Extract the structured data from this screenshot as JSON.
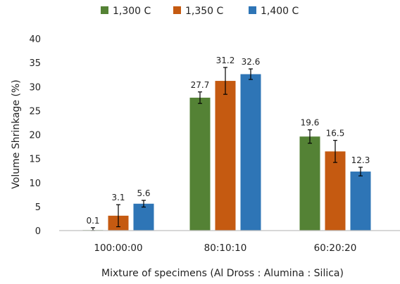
{
  "chart_data": {
    "type": "bar",
    "title": "",
    "xlabel": "Mixture of specimens (Al Dross : Alumina : Silica)",
    "ylabel": "Volume Shrinkage (%)",
    "ylim": [
      0,
      40
    ],
    "yticks": [
      0,
      5,
      10,
      15,
      20,
      25,
      30,
      35,
      40
    ],
    "grid": false,
    "legend_position": "top",
    "categories": [
      "100:00:00",
      "80:10:10",
      "60:20:20"
    ],
    "series": [
      {
        "name": "1,300 C",
        "color": "#548235",
        "values": [
          0.1,
          27.7,
          19.6
        ],
        "errors": [
          0.5,
          1.2,
          1.4
        ],
        "labels": [
          "0.1",
          "27.7",
          "19.6"
        ]
      },
      {
        "name": "1,350 C",
        "color": "#c55a11",
        "values": [
          3.1,
          31.2,
          16.5
        ],
        "errors": [
          2.3,
          2.8,
          2.3
        ],
        "labels": [
          "3.1",
          "31.2",
          "16.5"
        ]
      },
      {
        "name": "1,400 C",
        "color": "#2e75b6",
        "values": [
          5.6,
          32.6,
          12.3
        ],
        "errors": [
          0.7,
          1.1,
          0.9
        ],
        "labels": [
          "5.6",
          "32.6",
          "12.3"
        ]
      }
    ]
  }
}
